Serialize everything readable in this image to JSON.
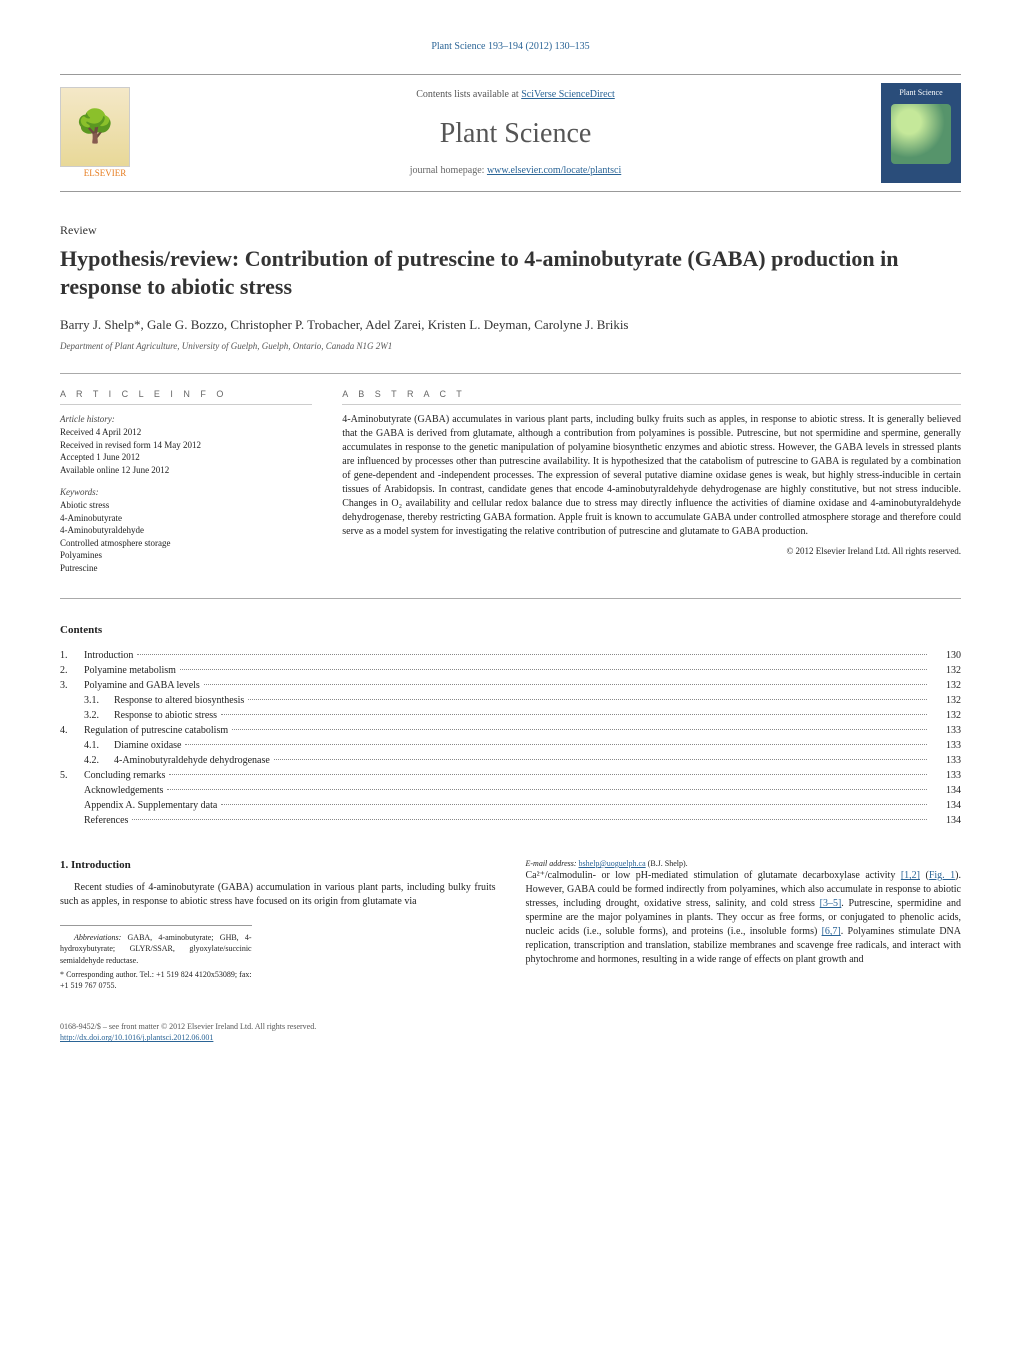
{
  "header_citation": "Plant Science 193–194 (2012) 130–135",
  "banner": {
    "elsevier": "ELSEVIER",
    "contents_line_prefix": "Contents lists available at ",
    "contents_link": "SciVerse ScienceDirect",
    "journal_title": "Plant Science",
    "homepage_prefix": "journal homepage: ",
    "homepage_url": "www.elsevier.com/locate/plantsci",
    "cover_label": "Plant Science"
  },
  "article": {
    "type": "Review",
    "title": "Hypothesis/review: Contribution of putrescine to 4-aminobutyrate (GABA) production in response to abiotic stress",
    "authors": "Barry J. Shelp*, Gale G. Bozzo, Christopher P. Trobacher, Adel Zarei, Kristen L. Deyman, Carolyne J. Brikis",
    "affiliation": "Department of Plant Agriculture, University of Guelph, Guelph, Ontario, Canada N1G 2W1"
  },
  "article_info": {
    "heading": "A R T I C L E   I N F O",
    "history_label": "Article history:",
    "history": [
      "Received 4 April 2012",
      "Received in revised form 14 May 2012",
      "Accepted 1 June 2012",
      "Available online 12 June 2012"
    ],
    "keywords_label": "Keywords:",
    "keywords": [
      "Abiotic stress",
      "4-Aminobutyrate",
      "4-Aminobutyraldehyde",
      "Controlled atmosphere storage",
      "Polyamines",
      "Putrescine"
    ]
  },
  "abstract": {
    "heading": "A B S T R A C T",
    "text": "4-Aminobutyrate (GABA) accumulates in various plant parts, including bulky fruits such as apples, in response to abiotic stress. It is generally believed that the GABA is derived from glutamate, although a contribution from polyamines is possible. Putrescine, but not spermidine and spermine, generally accumulates in response to the genetic manipulation of polyamine biosynthetic enzymes and abiotic stress. However, the GABA levels in stressed plants are influenced by processes other than putrescine availability. It is hypothesized that the catabolism of putrescine to GABA is regulated by a combination of gene-dependent and -independent processes. The expression of several putative diamine oxidase genes is weak, but highly stress-inducible in certain tissues of Arabidopsis. In contrast, candidate genes that encode 4-aminobutyraldehyde dehydrogenase are highly constitutive, but not stress inducible. Changes in O₂ availability and cellular redox balance due to stress may directly influence the activities of diamine oxidase and 4-aminobutyraldehyde dehydrogenase, thereby restricting GABA formation. Apple fruit is known to accumulate GABA under controlled atmosphere storage and therefore could serve as a model system for investigating the relative contribution of putrescine and glutamate to GABA production.",
    "copyright": "© 2012 Elsevier Ireland Ltd. All rights reserved."
  },
  "contents": {
    "heading": "Contents",
    "items": [
      {
        "num": "1.",
        "label": "Introduction",
        "page": "130"
      },
      {
        "num": "2.",
        "label": "Polyamine metabolism",
        "page": "132"
      },
      {
        "num": "3.",
        "label": "Polyamine and GABA levels",
        "page": "132"
      },
      {
        "num": "",
        "sub": "3.1.",
        "label": "Response to altered biosynthesis",
        "page": "132"
      },
      {
        "num": "",
        "sub": "3.2.",
        "label": "Response to abiotic stress",
        "page": "132"
      },
      {
        "num": "4.",
        "label": "Regulation of putrescine catabolism",
        "page": "133"
      },
      {
        "num": "",
        "sub": "4.1.",
        "label": "Diamine oxidase",
        "page": "133"
      },
      {
        "num": "",
        "sub": "4.2.",
        "label": "4-Aminobutyraldehyde dehydrogenase",
        "page": "133"
      },
      {
        "num": "5.",
        "label": "Concluding remarks",
        "page": "133"
      },
      {
        "num": "",
        "label": "Acknowledgements",
        "page": "134"
      },
      {
        "num": "",
        "label": "Appendix A.   Supplementary data",
        "page": "134"
      },
      {
        "num": "",
        "label": "References",
        "page": "134"
      }
    ]
  },
  "section1": {
    "heading": "1. Introduction",
    "p1": "Recent studies of 4-aminobutyrate (GABA) accumulation in various plant parts, including bulky fruits such as apples, in response to abiotic stress have focused on its origin from glutamate via",
    "p2_a": "Ca²⁺/calmodulin- or low pH-mediated stimulation of glutamate decarboxylase activity ",
    "p2_ref1": "[1,2]",
    "p2_b": " (",
    "p2_fig": "Fig. 1",
    "p2_c": "). However, GABA could be formed indirectly from polyamines, which also accumulate in response to abiotic stresses, including drought, oxidative stress, salinity, and cold stress ",
    "p2_ref2": "[3–5]",
    "p2_d": ". Putrescine, spermidine and spermine are the major polyamines in plants. They occur as free forms, or conjugated to phenolic acids, nucleic acids (i.e., soluble forms), and proteins (i.e., insoluble forms) ",
    "p2_ref3": "[6,7]",
    "p2_e": ". Polyamines stimulate DNA replication, transcription and translation, stabilize membranes and scavenge free radicals, and interact with phytochrome and hormones, resulting in a wide range of effects on plant growth and"
  },
  "footnotes": {
    "abbrev_label": "Abbreviations:",
    "abbrev": " GABA, 4-aminobutyrate; GHB, 4-hydroxybutyrate; GLYR/SSAR, glyoxylate/succinic semialdehyde reductase.",
    "corr": "* Corresponding author. Tel.: +1 519 824 4120x53089; fax: +1 519 767 0755.",
    "email_label": "E-mail address: ",
    "email": "bshelp@uoguelph.ca",
    "email_tail": " (B.J. Shelp)."
  },
  "footer": {
    "issn": "0168-9452/$ – see front matter © 2012 Elsevier Ireland Ltd. All rights reserved.",
    "doi": "http://dx.doi.org/10.1016/j.plantsci.2012.06.001"
  },
  "colors": {
    "link": "#2a6496",
    "rule": "#999999"
  }
}
